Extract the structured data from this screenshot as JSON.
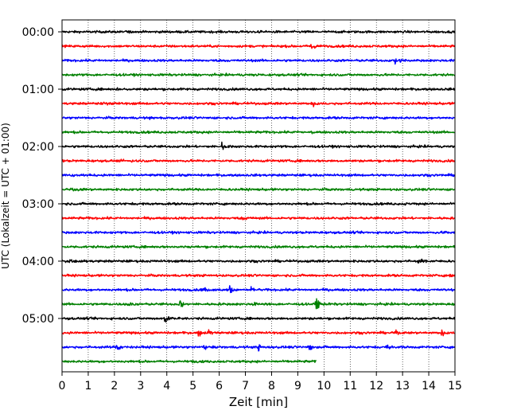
{
  "chart_data": {
    "type": "line",
    "title": "",
    "xlabel": "Zeit  [min]",
    "ylabel": "UTC (Lokalzeit = UTC + 01:00)",
    "xlim": [
      0,
      15
    ],
    "x_ticks": [
      "0",
      "1",
      "2",
      "3",
      "4",
      "5",
      "6",
      "7",
      "8",
      "9",
      "10",
      "11",
      "12",
      "13",
      "14",
      "15"
    ],
    "y_tick_labels": [
      "00:00",
      "01:00",
      "02:00",
      "03:00",
      "04:00",
      "05:00"
    ],
    "minutes_per_trace": 15,
    "grid": "vertical-dotted",
    "trace_colors": [
      "#000000",
      "#ff0000",
      "#0000ff",
      "#008000"
    ],
    "traces": [
      {
        "start": "00:00",
        "length_min": 15,
        "events": [
          {
            "t": 2.4,
            "amp": 0.12
          },
          {
            "t": 7.1,
            "amp": 0.1
          }
        ]
      },
      {
        "start": "00:15",
        "length_min": 15,
        "events": [
          {
            "t": 9.5,
            "amp": 0.75
          }
        ]
      },
      {
        "start": "00:30",
        "length_min": 15,
        "events": [
          {
            "t": 12.7,
            "amp": 0.55
          },
          {
            "t": 12.9,
            "amp": 0.45
          }
        ]
      },
      {
        "start": "00:45",
        "length_min": 15,
        "events": [
          {
            "t": 7.2,
            "amp": 0.12
          }
        ]
      },
      {
        "start": "01:00",
        "length_min": 15,
        "events": [
          {
            "t": 2.1,
            "amp": 0.15
          }
        ]
      },
      {
        "start": "01:15",
        "length_min": 15,
        "events": [
          {
            "t": 1.6,
            "amp": 0.12
          },
          {
            "t": 9.6,
            "amp": 0.45
          }
        ]
      },
      {
        "start": "01:30",
        "length_min": 15,
        "events": [
          {
            "t": 3.3,
            "amp": 0.12
          }
        ]
      },
      {
        "start": "01:45",
        "length_min": 15,
        "events": [
          {
            "t": 9.0,
            "amp": 0.1
          }
        ]
      },
      {
        "start": "02:00",
        "length_min": 15,
        "events": [
          {
            "t": 6.1,
            "amp": 0.55
          }
        ]
      },
      {
        "start": "02:15",
        "length_min": 15,
        "events": [
          {
            "t": 2.2,
            "amp": 0.1
          }
        ]
      },
      {
        "start": "02:30",
        "length_min": 15,
        "events": [
          {
            "t": 0.4,
            "amp": 0.08
          }
        ]
      },
      {
        "start": "02:45",
        "length_min": 15,
        "events": [
          {
            "t": 0.3,
            "amp": 0.15
          }
        ]
      },
      {
        "start": "03:00",
        "length_min": 15,
        "events": [
          {
            "t": 13.0,
            "amp": 0.2
          }
        ]
      },
      {
        "start": "03:15",
        "length_min": 15,
        "events": [
          {
            "t": 6.9,
            "amp": 0.28
          }
        ]
      },
      {
        "start": "03:30",
        "length_min": 15,
        "events": [
          {
            "t": 14.6,
            "amp": 0.15
          }
        ]
      },
      {
        "start": "03:45",
        "length_min": 15,
        "events": [
          {
            "t": 4.2,
            "amp": 0.08
          }
        ]
      },
      {
        "start": "04:00",
        "length_min": 15,
        "events": [
          {
            "t": 0.3,
            "amp": 0.35
          },
          {
            "t": 13.6,
            "amp": 0.3
          }
        ]
      },
      {
        "start": "04:15",
        "length_min": 15,
        "events": [
          {
            "t": 14.8,
            "amp": 0.3
          }
        ]
      },
      {
        "start": "04:30",
        "length_min": 15,
        "events": [
          {
            "t": 5.4,
            "amp": 0.4
          },
          {
            "t": 6.4,
            "amp": 0.55
          },
          {
            "t": 7.2,
            "amp": 0.3
          }
        ]
      },
      {
        "start": "04:45",
        "length_min": 15,
        "events": [
          {
            "t": 2.5,
            "amp": 0.4
          },
          {
            "t": 4.5,
            "amp": 0.75
          },
          {
            "t": 7.3,
            "amp": 0.3
          },
          {
            "t": 9.7,
            "amp": 0.8
          }
        ]
      },
      {
        "start": "05:00",
        "length_min": 15,
        "events": [
          {
            "t": 3.9,
            "amp": 0.65
          },
          {
            "t": 4.4,
            "amp": 0.3
          }
        ]
      },
      {
        "start": "05:15",
        "length_min": 15,
        "events": [
          {
            "t": 5.2,
            "amp": 0.5
          },
          {
            "t": 5.6,
            "amp": 0.3
          },
          {
            "t": 12.7,
            "amp": 0.4
          },
          {
            "t": 14.5,
            "amp": 0.6
          }
        ]
      },
      {
        "start": "05:30",
        "length_min": 15,
        "events": [
          {
            "t": 2.1,
            "amp": 0.7
          },
          {
            "t": 5.4,
            "amp": 0.4
          },
          {
            "t": 7.5,
            "amp": 0.45
          },
          {
            "t": 9.4,
            "amp": 0.55
          },
          {
            "t": 12.4,
            "amp": 0.35
          }
        ]
      },
      {
        "start": "05:45",
        "length_min": 9.7,
        "events": [
          {
            "t": 5.0,
            "amp": 0.1
          }
        ]
      }
    ]
  }
}
